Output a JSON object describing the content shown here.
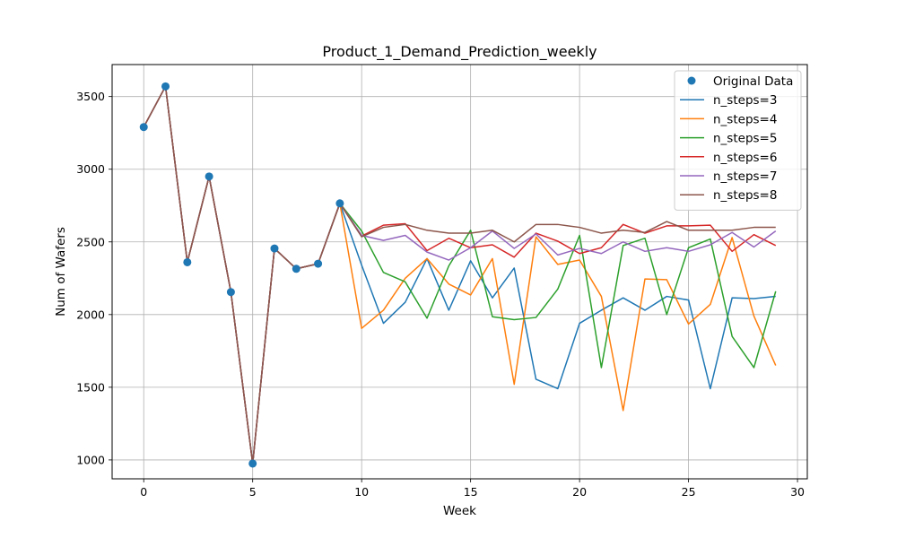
{
  "chart_data": {
    "type": "line",
    "title": "Product_1_Demand_Prediction_weekly",
    "xlabel": "Week",
    "ylabel": "Num of Wafers",
    "xlim": [
      -1.45,
      30.45
    ],
    "ylim": [
      870,
      3720
    ],
    "xticks": [
      0,
      5,
      10,
      15,
      20,
      25,
      30
    ],
    "yticks": [
      1000,
      1500,
      2000,
      2500,
      3000,
      3500
    ],
    "grid": true,
    "legend_position": "top-right",
    "original": {
      "name": "Original Data",
      "color": "#1f77b4",
      "x": [
        0,
        1,
        2,
        3,
        4,
        5,
        6,
        7,
        8,
        9
      ],
      "values": [
        3290,
        3570,
        2360,
        2950,
        2155,
        975,
        2455,
        2315,
        2350,
        2765
      ]
    },
    "series": [
      {
        "name": "n_steps=3",
        "color": "#1f77b4",
        "values": [
          3290,
          3570,
          2360,
          2950,
          2155,
          975,
          2455,
          2315,
          2350,
          2765,
          2340,
          1940,
          2085,
          2385,
          2030,
          2370,
          2115,
          2320,
          1555,
          1490,
          1940,
          2030,
          2115,
          2030,
          2125,
          2100,
          1490,
          2115,
          2110,
          2125
        ]
      },
      {
        "name": "n_steps=4",
        "color": "#ff7f0e",
        "values": [
          3290,
          3570,
          2360,
          2950,
          2155,
          975,
          2455,
          2315,
          2350,
          2765,
          1905,
          2030,
          2250,
          2385,
          2210,
          2135,
          2385,
          1520,
          2535,
          2345,
          2375,
          2125,
          1340,
          2245,
          2240,
          1935,
          2070,
          2530,
          1990,
          1650
        ]
      },
      {
        "name": "n_steps=5",
        "color": "#2ca02c",
        "values": [
          3290,
          3570,
          2360,
          2950,
          2155,
          975,
          2455,
          2315,
          2350,
          2765,
          2575,
          2290,
          2225,
          1975,
          2335,
          2580,
          1985,
          1965,
          1980,
          2175,
          2545,
          1635,
          2475,
          2525,
          2000,
          2460,
          2520,
          1850,
          1635,
          2160
        ]
      },
      {
        "name": "n_steps=6",
        "color": "#d62728",
        "values": [
          3290,
          3570,
          2360,
          2950,
          2155,
          975,
          2455,
          2315,
          2350,
          2765,
          2540,
          2615,
          2625,
          2440,
          2525,
          2460,
          2480,
          2395,
          2560,
          2505,
          2420,
          2460,
          2620,
          2560,
          2610,
          2610,
          2615,
          2435,
          2550,
          2475
        ]
      },
      {
        "name": "n_steps=7",
        "color": "#9467bd",
        "values": [
          3290,
          3570,
          2360,
          2950,
          2155,
          975,
          2455,
          2315,
          2350,
          2765,
          2545,
          2510,
          2545,
          2430,
          2375,
          2460,
          2575,
          2455,
          2555,
          2410,
          2455,
          2420,
          2500,
          2435,
          2460,
          2435,
          2480,
          2565,
          2465,
          2575
        ]
      },
      {
        "name": "n_steps=8",
        "color": "#8c564b",
        "values": [
          3290,
          3570,
          2360,
          2950,
          2155,
          975,
          2455,
          2315,
          2350,
          2765,
          2535,
          2600,
          2620,
          2580,
          2560,
          2560,
          2580,
          2500,
          2620,
          2620,
          2600,
          2560,
          2580,
          2565,
          2640,
          2580,
          2580,
          2580,
          2600,
          2600
        ]
      }
    ]
  }
}
